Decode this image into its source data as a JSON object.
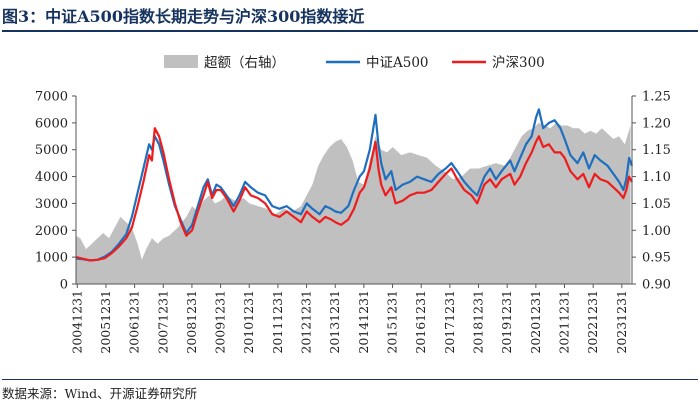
{
  "title": "图3：中证A500指数长期走势与沪深300指数接近",
  "source": "数据来源：Wind、开源证券研究所",
  "chart_data": {
    "type": "line",
    "x": [
      "20041231",
      "20051231",
      "20061231",
      "20071231",
      "20081231",
      "20091231",
      "20101231",
      "20111231",
      "20121231",
      "20131231",
      "20141231",
      "20151231",
      "20161231",
      "20171231",
      "20181231",
      "20191231",
      "20201231",
      "20211231",
      "20221231",
      "20231231"
    ],
    "x_ticks": [
      "20041231",
      "20051231",
      "20061231",
      "20071231",
      "20081231",
      "20091231",
      "20101231",
      "20111231",
      "20121231",
      "20131231",
      "20141231",
      "20151231",
      "20161231",
      "20171231",
      "20181231",
      "20191231",
      "20201231",
      "20211231",
      "20221231",
      "20231231"
    ],
    "x_range": [
      2004.95,
      2024.35
    ],
    "y_left": {
      "ticks": [
        "0",
        "1000",
        "2000",
        "3000",
        "4000",
        "5000",
        "6000",
        "7000"
      ],
      "range": [
        0,
        7000
      ]
    },
    "y_right": {
      "ticks": [
        "0.90",
        "0.95",
        "1.00",
        "1.05",
        "1.10",
        "1.15",
        "1.20",
        "1.25"
      ],
      "range": [
        0.9,
        1.25
      ]
    },
    "legend_position": "top",
    "series": [
      {
        "name": "超额（右轴）",
        "type": "area",
        "axis": "right",
        "color": "#c0c0c0",
        "points": [
          [
            2004.95,
            0.99
          ],
          [
            2005.1,
            0.985
          ],
          [
            2005.3,
            0.965
          ],
          [
            2005.5,
            0.975
          ],
          [
            2005.7,
            0.985
          ],
          [
            2005.9,
            0.995
          ],
          [
            2006.1,
            0.985
          ],
          [
            2006.3,
            1.005
          ],
          [
            2006.5,
            1.025
          ],
          [
            2006.7,
            1.015
          ],
          [
            2006.9,
            1.005
          ],
          [
            2007.1,
            0.975
          ],
          [
            2007.25,
            0.945
          ],
          [
            2007.4,
            0.965
          ],
          [
            2007.6,
            0.985
          ],
          [
            2007.8,
            0.975
          ],
          [
            2008.0,
            0.985
          ],
          [
            2008.2,
            0.99
          ],
          [
            2008.5,
            1.005
          ],
          [
            2008.8,
            1.025
          ],
          [
            2009.0,
            1.045
          ],
          [
            2009.2,
            1.035
          ],
          [
            2009.4,
            1.055
          ],
          [
            2009.6,
            1.065
          ],
          [
            2009.8,
            1.05
          ],
          [
            2010.0,
            1.055
          ],
          [
            2010.2,
            1.065
          ],
          [
            2010.5,
            1.055
          ],
          [
            2010.8,
            1.06
          ],
          [
            2011.0,
            1.05
          ],
          [
            2011.3,
            1.045
          ],
          [
            2011.6,
            1.04
          ],
          [
            2011.9,
            1.03
          ],
          [
            2012.2,
            1.04
          ],
          [
            2012.5,
            1.035
          ],
          [
            2012.8,
            1.045
          ],
          [
            2013.0,
            1.065
          ],
          [
            2013.2,
            1.085
          ],
          [
            2013.4,
            1.12
          ],
          [
            2013.6,
            1.14
          ],
          [
            2013.8,
            1.155
          ],
          [
            2014.0,
            1.165
          ],
          [
            2014.2,
            1.17
          ],
          [
            2014.4,
            1.155
          ],
          [
            2014.6,
            1.13
          ],
          [
            2014.8,
            1.09
          ],
          [
            2015.0,
            1.085
          ],
          [
            2015.2,
            1.13
          ],
          [
            2015.4,
            1.175
          ],
          [
            2015.6,
            1.15
          ],
          [
            2015.8,
            1.145
          ],
          [
            2016.0,
            1.155
          ],
          [
            2016.3,
            1.14
          ],
          [
            2016.6,
            1.145
          ],
          [
            2016.9,
            1.14
          ],
          [
            2017.2,
            1.135
          ],
          [
            2017.5,
            1.12
          ],
          [
            2017.8,
            1.11
          ],
          [
            2018.1,
            1.095
          ],
          [
            2018.4,
            1.1
          ],
          [
            2018.7,
            1.115
          ],
          [
            2019.0,
            1.115
          ],
          [
            2019.3,
            1.12
          ],
          [
            2019.6,
            1.125
          ],
          [
            2019.9,
            1.12
          ],
          [
            2020.1,
            1.135
          ],
          [
            2020.3,
            1.155
          ],
          [
            2020.5,
            1.175
          ],
          [
            2020.7,
            1.185
          ],
          [
            2020.9,
            1.19
          ],
          [
            2021.1,
            1.2
          ],
          [
            2021.3,
            1.195
          ],
          [
            2021.5,
            1.19
          ],
          [
            2021.7,
            1.2
          ],
          [
            2021.9,
            1.195
          ],
          [
            2022.1,
            1.195
          ],
          [
            2022.3,
            1.19
          ],
          [
            2022.5,
            1.19
          ],
          [
            2022.7,
            1.18
          ],
          [
            2022.9,
            1.185
          ],
          [
            2023.1,
            1.18
          ],
          [
            2023.3,
            1.19
          ],
          [
            2023.5,
            1.18
          ],
          [
            2023.7,
            1.17
          ],
          [
            2023.9,
            1.175
          ],
          [
            2024.1,
            1.16
          ],
          [
            2024.3,
            1.195
          ]
        ]
      },
      {
        "name": "中证A500",
        "type": "line",
        "axis": "left",
        "color": "#1e6fbf",
        "points": [
          [
            2004.95,
            950
          ],
          [
            2005.2,
            920
          ],
          [
            2005.45,
            880
          ],
          [
            2005.7,
            900
          ],
          [
            2005.95,
            1020
          ],
          [
            2006.2,
            1200
          ],
          [
            2006.45,
            1500
          ],
          [
            2006.7,
            1850
          ],
          [
            2006.9,
            2500
          ],
          [
            2007.1,
            3400
          ],
          [
            2007.3,
            4300
          ],
          [
            2007.5,
            5200
          ],
          [
            2007.6,
            5000
          ],
          [
            2007.7,
            5500
          ],
          [
            2007.85,
            5200
          ],
          [
            2008.0,
            4600
          ],
          [
            2008.2,
            3700
          ],
          [
            2008.4,
            2900
          ],
          [
            2008.6,
            2400
          ],
          [
            2008.8,
            1900
          ],
          [
            2009.0,
            2200
          ],
          [
            2009.2,
            2900
          ],
          [
            2009.4,
            3600
          ],
          [
            2009.55,
            3900
          ],
          [
            2009.7,
            3300
          ],
          [
            2009.85,
            3700
          ],
          [
            2010.0,
            3600
          ],
          [
            2010.2,
            3300
          ],
          [
            2010.45,
            2900
          ],
          [
            2010.65,
            3300
          ],
          [
            2010.85,
            3800
          ],
          [
            2011.05,
            3600
          ],
          [
            2011.3,
            3400
          ],
          [
            2011.55,
            3300
          ],
          [
            2011.8,
            2900
          ],
          [
            2012.05,
            2800
          ],
          [
            2012.3,
            2900
          ],
          [
            2012.55,
            2700
          ],
          [
            2012.8,
            2600
          ],
          [
            2013.0,
            3000
          ],
          [
            2013.2,
            2800
          ],
          [
            2013.45,
            2600
          ],
          [
            2013.65,
            2900
          ],
          [
            2013.85,
            2800
          ],
          [
            2014.0,
            2700
          ],
          [
            2014.2,
            2650
          ],
          [
            2014.45,
            2900
          ],
          [
            2014.65,
            3500
          ],
          [
            2014.85,
            4000
          ],
          [
            2015.0,
            4200
          ],
          [
            2015.2,
            5000
          ],
          [
            2015.4,
            6300
          ],
          [
            2015.5,
            5200
          ],
          [
            2015.6,
            4500
          ],
          [
            2015.75,
            3900
          ],
          [
            2015.95,
            4200
          ],
          [
            2016.1,
            3500
          ],
          [
            2016.35,
            3700
          ],
          [
            2016.6,
            3800
          ],
          [
            2016.85,
            4000
          ],
          [
            2017.1,
            3900
          ],
          [
            2017.35,
            3800
          ],
          [
            2017.6,
            4100
          ],
          [
            2017.85,
            4300
          ],
          [
            2018.05,
            4500
          ],
          [
            2018.25,
            4200
          ],
          [
            2018.5,
            3800
          ],
          [
            2018.75,
            3500
          ],
          [
            2018.95,
            3300
          ],
          [
            2019.2,
            4000
          ],
          [
            2019.4,
            4300
          ],
          [
            2019.6,
            3900
          ],
          [
            2019.8,
            4200
          ],
          [
            2019.95,
            4400
          ],
          [
            2020.1,
            4600
          ],
          [
            2020.25,
            4200
          ],
          [
            2020.45,
            4700
          ],
          [
            2020.65,
            5200
          ],
          [
            2020.85,
            5500
          ],
          [
            2021.0,
            6200
          ],
          [
            2021.1,
            6500
          ],
          [
            2021.25,
            5800
          ],
          [
            2021.45,
            6000
          ],
          [
            2021.65,
            6100
          ],
          [
            2021.85,
            5800
          ],
          [
            2022.0,
            5400
          ],
          [
            2022.2,
            4800
          ],
          [
            2022.45,
            4500
          ],
          [
            2022.65,
            4900
          ],
          [
            2022.85,
            4300
          ],
          [
            2023.05,
            4800
          ],
          [
            2023.25,
            4600
          ],
          [
            2023.5,
            4400
          ],
          [
            2023.7,
            4100
          ],
          [
            2023.9,
            3800
          ],
          [
            2024.05,
            3500
          ],
          [
            2024.15,
            3900
          ],
          [
            2024.25,
            4700
          ],
          [
            2024.35,
            4400
          ]
        ]
      },
      {
        "name": "沪深300",
        "type": "line",
        "axis": "left",
        "color": "#ee1c1c",
        "points": [
          [
            2004.95,
            1000
          ],
          [
            2005.2,
            940
          ],
          [
            2005.45,
            880
          ],
          [
            2005.7,
            900
          ],
          [
            2005.95,
            960
          ],
          [
            2006.2,
            1150
          ],
          [
            2006.45,
            1400
          ],
          [
            2006.7,
            1700
          ],
          [
            2006.9,
            2100
          ],
          [
            2007.1,
            2900
          ],
          [
            2007.3,
            3800
          ],
          [
            2007.5,
            4800
          ],
          [
            2007.6,
            4600
          ],
          [
            2007.7,
            5800
          ],
          [
            2007.85,
            5500
          ],
          [
            2008.0,
            4900
          ],
          [
            2008.2,
            3900
          ],
          [
            2008.4,
            3000
          ],
          [
            2008.6,
            2300
          ],
          [
            2008.8,
            1800
          ],
          [
            2009.0,
            2000
          ],
          [
            2009.2,
            2700
          ],
          [
            2009.4,
            3300
          ],
          [
            2009.55,
            3800
          ],
          [
            2009.7,
            3200
          ],
          [
            2009.85,
            3500
          ],
          [
            2010.0,
            3500
          ],
          [
            2010.2,
            3200
          ],
          [
            2010.45,
            2700
          ],
          [
            2010.65,
            3100
          ],
          [
            2010.85,
            3600
          ],
          [
            2011.05,
            3300
          ],
          [
            2011.3,
            3200
          ],
          [
            2011.55,
            3000
          ],
          [
            2011.8,
            2600
          ],
          [
            2012.05,
            2500
          ],
          [
            2012.3,
            2700
          ],
          [
            2012.55,
            2500
          ],
          [
            2012.8,
            2300
          ],
          [
            2013.0,
            2700
          ],
          [
            2013.2,
            2500
          ],
          [
            2013.45,
            2300
          ],
          [
            2013.65,
            2500
          ],
          [
            2013.85,
            2400
          ],
          [
            2014.0,
            2300
          ],
          [
            2014.2,
            2200
          ],
          [
            2014.45,
            2400
          ],
          [
            2014.65,
            2800
          ],
          [
            2014.85,
            3400
          ],
          [
            2015.0,
            3600
          ],
          [
            2015.2,
            4300
          ],
          [
            2015.4,
            5300
          ],
          [
            2015.5,
            4300
          ],
          [
            2015.6,
            3700
          ],
          [
            2015.75,
            3300
          ],
          [
            2015.95,
            3600
          ],
          [
            2016.1,
            3000
          ],
          [
            2016.35,
            3100
          ],
          [
            2016.6,
            3300
          ],
          [
            2016.85,
            3400
          ],
          [
            2017.1,
            3400
          ],
          [
            2017.35,
            3500
          ],
          [
            2017.6,
            3800
          ],
          [
            2017.85,
            4100
          ],
          [
            2018.05,
            4300
          ],
          [
            2018.25,
            3900
          ],
          [
            2018.5,
            3500
          ],
          [
            2018.75,
            3300
          ],
          [
            2018.95,
            3000
          ],
          [
            2019.2,
            3700
          ],
          [
            2019.4,
            3900
          ],
          [
            2019.6,
            3600
          ],
          [
            2019.8,
            3900
          ],
          [
            2019.95,
            4000
          ],
          [
            2020.1,
            4100
          ],
          [
            2020.25,
            3700
          ],
          [
            2020.45,
            4000
          ],
          [
            2020.65,
            4500
          ],
          [
            2020.85,
            4900
          ],
          [
            2021.0,
            5300
          ],
          [
            2021.1,
            5500
          ],
          [
            2021.25,
            5100
          ],
          [
            2021.45,
            5200
          ],
          [
            2021.65,
            4900
          ],
          [
            2021.85,
            4900
          ],
          [
            2022.0,
            4700
          ],
          [
            2022.2,
            4200
          ],
          [
            2022.45,
            3900
          ],
          [
            2022.65,
            4100
          ],
          [
            2022.85,
            3600
          ],
          [
            2023.05,
            4100
          ],
          [
            2023.25,
            3900
          ],
          [
            2023.5,
            3800
          ],
          [
            2023.7,
            3600
          ],
          [
            2023.9,
            3400
          ],
          [
            2024.05,
            3200
          ],
          [
            2024.15,
            3500
          ],
          [
            2024.25,
            4000
          ],
          [
            2024.35,
            3800
          ]
        ]
      }
    ]
  }
}
